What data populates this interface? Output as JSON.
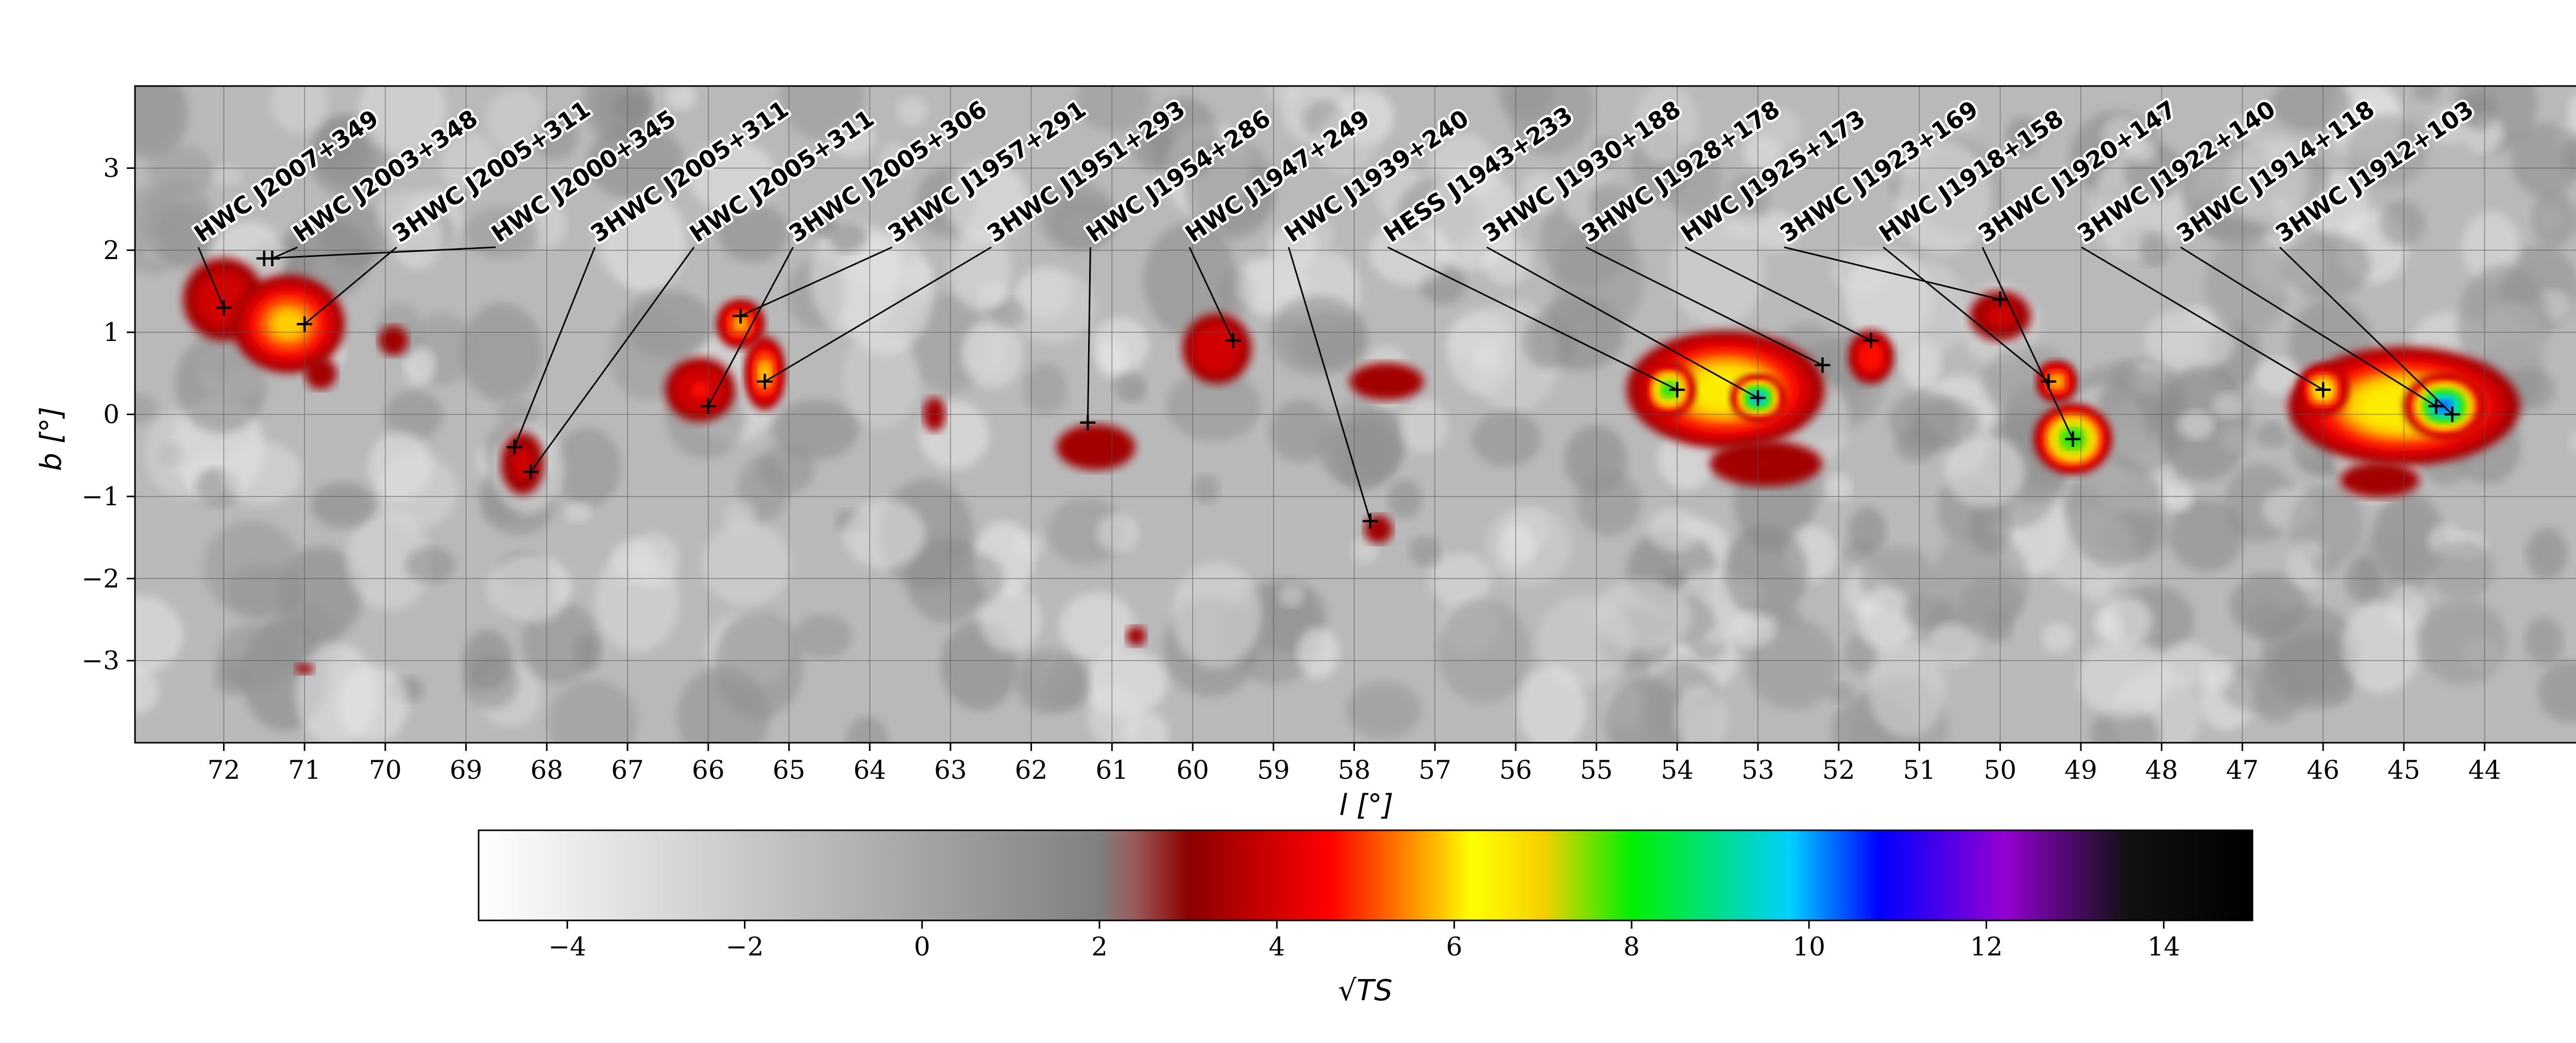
{
  "chart_data": {
    "type": "heatmap",
    "title": "",
    "xlabel": "l [°]",
    "ylabel": "b [°]",
    "xlim": [
      73.1,
      42.6
    ],
    "ylim": [
      -4.0,
      4.0
    ],
    "x_ticks": [
      72,
      71,
      70,
      69,
      68,
      67,
      66,
      65,
      64,
      63,
      62,
      61,
      60,
      59,
      58,
      57,
      56,
      55,
      54,
      53,
      52,
      51,
      50,
      49,
      48,
      47,
      46,
      45,
      44
    ],
    "y_ticks": [
      3,
      2,
      1,
      0,
      -1,
      -2,
      -3
    ],
    "x_ticklabels": [
      "72",
      "71",
      "70",
      "69",
      "68",
      "67",
      "66",
      "65",
      "64",
      "63",
      "62",
      "61",
      "60",
      "59",
      "58",
      "57",
      "56",
      "55",
      "54",
      "53",
      "52",
      "51",
      "50",
      "49",
      "48",
      "47",
      "46",
      "45",
      "44"
    ],
    "y_ticklabels": [
      "3",
      "2",
      "1",
      "0",
      "−1",
      "−2",
      "−3"
    ],
    "grid": true,
    "colorbar": {
      "label": "√TS",
      "range": [
        -5,
        15
      ],
      "ticks": [
        -4,
        -2,
        0,
        2,
        4,
        6,
        8,
        10,
        12,
        14
      ],
      "ticklabels": [
        "−4",
        "−2",
        "0",
        "2",
        "4",
        "6",
        "8",
        "10",
        "12",
        "14"
      ]
    },
    "blobs": [
      {
        "l": 72.0,
        "b": 1.4,
        "sl": 0.6,
        "sb": 0.6,
        "ts": 4.2
      },
      {
        "l": 71.2,
        "b": 1.1,
        "sl": 0.7,
        "sb": 0.6,
        "ts": 6.0
      },
      {
        "l": 70.8,
        "b": 0.5,
        "sl": 0.3,
        "sb": 0.3,
        "ts": 3.5
      },
      {
        "l": 69.9,
        "b": 0.9,
        "sl": 0.3,
        "sb": 0.3,
        "ts": 3.4
      },
      {
        "l": 68.3,
        "b": -0.6,
        "sl": 0.35,
        "sb": 0.5,
        "ts": 3.8
      },
      {
        "l": 66.1,
        "b": 0.3,
        "sl": 0.5,
        "sb": 0.45,
        "ts": 4.4
      },
      {
        "l": 65.6,
        "b": 1.1,
        "sl": 0.3,
        "sb": 0.3,
        "ts": 5.8
      },
      {
        "l": 65.3,
        "b": 0.5,
        "sl": 0.25,
        "sb": 0.45,
        "ts": 6.0
      },
      {
        "l": 63.2,
        "b": 0.0,
        "sl": 0.4,
        "sb": 0.6,
        "ts": 3.1
      },
      {
        "l": 61.2,
        "b": -0.4,
        "sl": 0.7,
        "sb": 0.4,
        "ts": 3.6
      },
      {
        "l": 59.7,
        "b": 0.8,
        "sl": 0.5,
        "sb": 0.5,
        "ts": 4.3
      },
      {
        "l": 57.6,
        "b": 0.4,
        "sl": 0.7,
        "sb": 0.35,
        "ts": 3.5
      },
      {
        "l": 57.7,
        "b": -1.4,
        "sl": 0.25,
        "sb": 0.25,
        "ts": 3.6
      },
      {
        "l": 53.4,
        "b": 0.3,
        "sl": 1.2,
        "sb": 0.7,
        "ts": 6.8
      },
      {
        "l": 53.0,
        "b": 0.2,
        "sl": 0.3,
        "sb": 0.25,
        "ts": 10.5
      },
      {
        "l": 54.1,
        "b": 0.3,
        "sl": 0.3,
        "sb": 0.3,
        "ts": 8.5
      },
      {
        "l": 52.9,
        "b": -0.6,
        "sl": 1.0,
        "sb": 0.4,
        "ts": 3.6
      },
      {
        "l": 51.6,
        "b": 0.7,
        "sl": 0.3,
        "sb": 0.35,
        "ts": 5.0
      },
      {
        "l": 50.0,
        "b": 1.2,
        "sl": 0.5,
        "sb": 0.4,
        "ts": 3.8
      },
      {
        "l": 49.1,
        "b": -0.3,
        "sl": 0.45,
        "sb": 0.4,
        "ts": 8.5
      },
      {
        "l": 49.3,
        "b": 0.4,
        "sl": 0.25,
        "sb": 0.25,
        "ts": 6.0
      },
      {
        "l": 45.0,
        "b": 0.1,
        "sl": 1.4,
        "sb": 0.7,
        "ts": 7.0
      },
      {
        "l": 44.5,
        "b": 0.1,
        "sl": 0.45,
        "sb": 0.35,
        "ts": 10.8
      },
      {
        "l": 46.0,
        "b": 0.3,
        "sl": 0.3,
        "sb": 0.3,
        "ts": 6.8
      },
      {
        "l": 45.3,
        "b": -0.8,
        "sl": 0.9,
        "sb": 0.4,
        "ts": 3.3
      },
      {
        "l": 71.0,
        "b": -3.1,
        "sl": 0.25,
        "sb": 0.15,
        "ts": 3.2
      },
      {
        "l": 60.7,
        "b": -2.7,
        "sl": 0.2,
        "sb": 0.2,
        "ts": 3.4
      }
    ],
    "sources": [
      {
        "name": "HWC J2007+349",
        "l": 72.0,
        "b": 1.3
      },
      {
        "name": "HWC J2003+348",
        "l": 71.4,
        "b": 1.9
      },
      {
        "name": "3HWC J2005+311",
        "l": 71.0,
        "b": 1.1
      },
      {
        "name": "HWC J2000+345",
        "l": 71.5,
        "b": 1.9
      },
      {
        "name": "3HWC J2005+311",
        "l": 68.4,
        "b": -0.4
      },
      {
        "name": "HWC J2005+311",
        "l": 68.2,
        "b": -0.7
      },
      {
        "name": "3HWC J2005+306",
        "l": 66.0,
        "b": 0.1
      },
      {
        "name": "3HWC J1957+291",
        "l": 65.6,
        "b": 1.2
      },
      {
        "name": "3HWC J1951+293",
        "l": 65.3,
        "b": 0.4
      },
      {
        "name": "HWC J1954+286",
        "l": 61.3,
        "b": -0.1
      },
      {
        "name": "HWC J1947+249",
        "l": 59.5,
        "b": 0.9
      },
      {
        "name": "HWC J1939+240",
        "l": 57.8,
        "b": -1.3
      },
      {
        "name": "HESS J1943+233",
        "l": 54.0,
        "b": 0.3
      },
      {
        "name": "3HWC J1930+188",
        "l": 53.0,
        "b": 0.2
      },
      {
        "name": "3HWC J1928+178",
        "l": 52.2,
        "b": 0.6
      },
      {
        "name": "HWC J1925+173",
        "l": 51.6,
        "b": 0.9
      },
      {
        "name": "3HWC J1923+169",
        "l": 50.0,
        "b": 1.4
      },
      {
        "name": "HWC J1918+158",
        "l": 49.4,
        "b": 0.4
      },
      {
        "name": "3HWC J1920+147",
        "l": 49.1,
        "b": -0.3
      },
      {
        "name": "3HWC J1922+140",
        "l": 46.0,
        "b": 0.3
      },
      {
        "name": "3HWC J1914+118",
        "l": 44.6,
        "b": 0.1
      },
      {
        "name": "3HWC J1912+103",
        "l": 44.4,
        "b": 0.0
      }
    ]
  }
}
